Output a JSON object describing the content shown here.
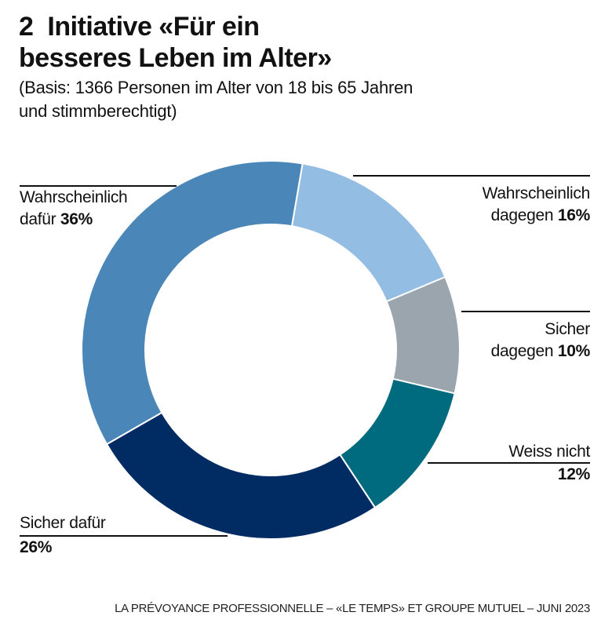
{
  "header": {
    "number": "2",
    "title_line1": "Initiative «Für ein",
    "title_line2": "besseres Leben im Alter»",
    "subtitle_line1": "(Basis: 1366 Personen im Alter von 18 bis 65 Jahren",
    "subtitle_line2": "und stimmberechtigt)"
  },
  "chart_data": {
    "type": "pie",
    "donut": true,
    "start": "clockwise from top",
    "slices": [
      {
        "label_line1": "Wahrscheinlich",
        "label_line2": "dagegen",
        "value": 16,
        "value_text": "16%",
        "color": "#93bde3"
      },
      {
        "label_line1": "Sicher",
        "label_line2": "dagegen",
        "value": 10,
        "value_text": "10%",
        "color": "#9aa5ae"
      },
      {
        "label_line1": "Weiss nicht",
        "label_line2": "",
        "value": 12,
        "value_text": "12%",
        "color": "#006a7f"
      },
      {
        "label_line1": "Sicher dafür",
        "label_line2": "",
        "value": 26,
        "value_text": "26%",
        "color": "#002b63"
      },
      {
        "label_line1": "Wahrscheinlich",
        "label_line2": "dafür",
        "value": 36,
        "value_text": "36%",
        "color": "#4a87b8"
      }
    ]
  },
  "footer": {
    "source": "LA PRÉVOYANCE PROFESSIONNELLE – «LE TEMPS» ET GROUPE MUTUEL – JUNI 2023"
  }
}
